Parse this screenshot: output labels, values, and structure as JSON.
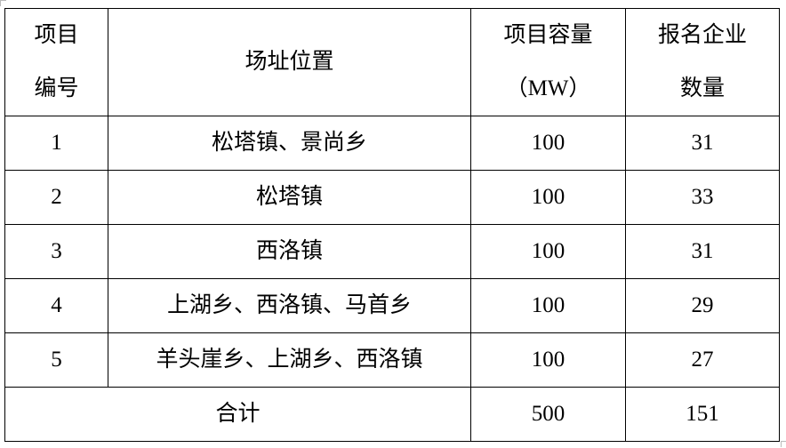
{
  "table": {
    "headers": {
      "id": [
        "项目",
        "编号"
      ],
      "location": "场址位置",
      "capacity": [
        "项目容量",
        "（MW）"
      ],
      "bidders": [
        "报名企业",
        "数量"
      ]
    },
    "rows": [
      {
        "id": "1",
        "location": "松塔镇、景尚乡",
        "capacity": "100",
        "bidders": "31"
      },
      {
        "id": "2",
        "location": "松塔镇",
        "capacity": "100",
        "bidders": "33"
      },
      {
        "id": "3",
        "location": "西洛镇",
        "capacity": "100",
        "bidders": "31"
      },
      {
        "id": "4",
        "location": "上湖乡、西洛镇、马首乡",
        "capacity": "100",
        "bidders": "29"
      },
      {
        "id": "5",
        "location": "羊头崖乡、上湖乡、西洛镇",
        "capacity": "100",
        "bidders": "27"
      }
    ],
    "total": {
      "label": "合计",
      "capacity": "500",
      "bidders": "151"
    }
  }
}
